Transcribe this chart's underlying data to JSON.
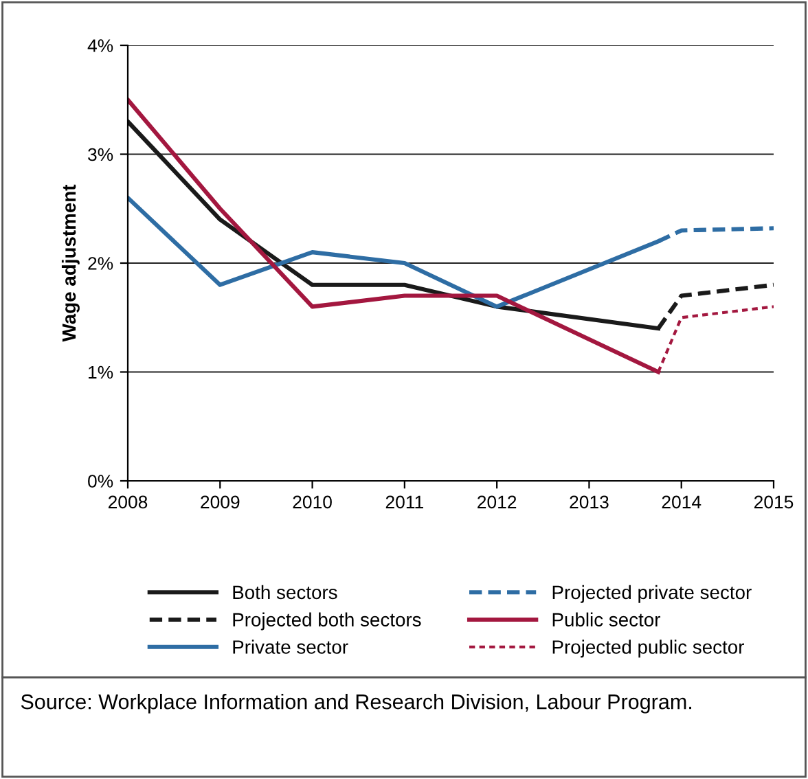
{
  "chart_data": {
    "type": "line",
    "ylabel": "Wage adjustment",
    "xlim": [
      2008,
      2015
    ],
    "xticks": [
      2008,
      2009,
      2010,
      2011,
      2012,
      2013,
      2014,
      2015
    ],
    "ylim": [
      0,
      4
    ],
    "yticks": [
      {
        "value": 0,
        "label": "0%"
      },
      {
        "value": 1,
        "label": "1%"
      },
      {
        "value": 2,
        "label": "2%"
      },
      {
        "value": 3,
        "label": "3%"
      },
      {
        "value": 4,
        "label": "4%"
      }
    ],
    "grid": "y",
    "legend": "bottom",
    "marker": "none",
    "series": [
      {
        "name": "Both sectors",
        "color": "#1a1a1a",
        "line_style": "solid",
        "x": [
          2008,
          2009,
          2010,
          2011,
          2012,
          2013.75
        ],
        "values": [
          3.3,
          2.4,
          1.8,
          1.8,
          1.6,
          1.4
        ]
      },
      {
        "name": "Private sector",
        "color": "#2e6da4",
        "line_style": "solid",
        "x": [
          2008,
          2009,
          2010,
          2011,
          2012,
          2013.75
        ],
        "values": [
          2.6,
          1.8,
          2.1,
          2.0,
          1.6,
          2.2
        ]
      },
      {
        "name": "Public sector",
        "color": "#a3173f",
        "line_style": "solid",
        "x": [
          2008,
          2009,
          2010,
          2011,
          2012,
          2013.75
        ],
        "values": [
          3.5,
          2.5,
          1.6,
          1.7,
          1.7,
          1.0
        ]
      },
      {
        "name": "Projected both sectors",
        "color": "#1a1a1a",
        "line_style": "dashed",
        "x": [
          2013.75,
          2014,
          2015
        ],
        "values": [
          1.4,
          1.7,
          1.8
        ]
      },
      {
        "name": "Projected private sector",
        "color": "#2e6da4",
        "line_style": "dashed",
        "x": [
          2013.75,
          2014,
          2015
        ],
        "values": [
          2.2,
          2.3,
          2.32
        ]
      },
      {
        "name": "Projected public sector",
        "color": "#a3173f",
        "line_style": "dotted",
        "x": [
          2013.75,
          2014,
          2015
        ],
        "values": [
          1.0,
          1.5,
          1.6
        ]
      }
    ],
    "annotations": [
      "Source: Workplace Information and Research Division, Labour Program."
    ]
  }
}
